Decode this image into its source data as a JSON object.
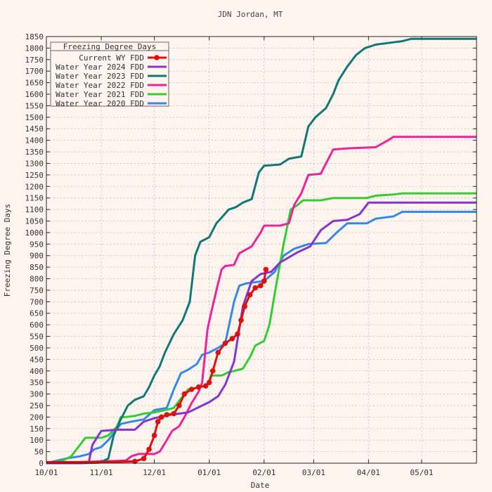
{
  "chart_data": {
    "type": "line",
    "title": "JDN Jordan, MT",
    "xlabel": "Date",
    "ylabel": "Freezing Degree Days",
    "x_unit": "date",
    "xlim": [
      "10/01",
      "06/01"
    ],
    "ylim": [
      0,
      1850
    ],
    "yticks": [
      0,
      50,
      100,
      150,
      200,
      250,
      300,
      350,
      400,
      450,
      500,
      550,
      600,
      650,
      700,
      750,
      800,
      850,
      900,
      950,
      1000,
      1050,
      1100,
      1150,
      1200,
      1250,
      1300,
      1350,
      1400,
      1450,
      1500,
      1550,
      1600,
      1650,
      1700,
      1750,
      1800,
      1850
    ],
    "xticks": [
      "10/01",
      "11/01",
      "12/01",
      "01/01",
      "02/01",
      "03/01",
      "04/01",
      "05/01"
    ],
    "grid": true,
    "legend": {
      "title": "Freezing Degree Days",
      "placement": "top-left"
    },
    "series": [
      {
        "name": "Current WY FDD",
        "color": "#dd1111",
        "markers": true,
        "points": [
          [
            "10/01",
            5
          ],
          [
            "10/20",
            5
          ],
          [
            "11/05",
            5
          ],
          [
            "11/20",
            8
          ],
          [
            "11/25",
            20
          ],
          [
            "11/28",
            60
          ],
          [
            "12/01",
            120
          ],
          [
            "12/03",
            180
          ],
          [
            "12/05",
            200
          ],
          [
            "12/08",
            210
          ],
          [
            "12/12",
            215
          ],
          [
            "12/15",
            250
          ],
          [
            "12/18",
            300
          ],
          [
            "12/22",
            320
          ],
          [
            "12/26",
            330
          ],
          [
            "12/30",
            335
          ],
          [
            "01/01",
            350
          ],
          [
            "01/03",
            400
          ],
          [
            "01/06",
            480
          ],
          [
            "01/10",
            520
          ],
          [
            "01/14",
            540
          ],
          [
            "01/17",
            560
          ],
          [
            "01/19",
            620
          ],
          [
            "01/21",
            680
          ],
          [
            "01/24",
            730
          ],
          [
            "01/27",
            760
          ],
          [
            "01/30",
            770
          ],
          [
            "02/01",
            790
          ],
          [
            "02/02",
            840
          ]
        ]
      },
      {
        "name": "Water Year 2024 FDD",
        "color": "#8833cc",
        "markers": false,
        "points": [
          [
            "10/01",
            0
          ],
          [
            "10/20",
            0
          ],
          [
            "10/25",
            5
          ],
          [
            "10/27",
            80
          ],
          [
            "11/01",
            140
          ],
          [
            "11/10",
            145
          ],
          [
            "11/20",
            145
          ],
          [
            "11/25",
            180
          ],
          [
            "12/01",
            195
          ],
          [
            "12/10",
            210
          ],
          [
            "12/20",
            220
          ],
          [
            "12/28",
            250
          ],
          [
            "01/01",
            265
          ],
          [
            "01/06",
            290
          ],
          [
            "01/10",
            340
          ],
          [
            "01/15",
            440
          ],
          [
            "01/20",
            680
          ],
          [
            "01/25",
            790
          ],
          [
            "01/30",
            820
          ],
          [
            "02/05",
            830
          ],
          [
            "02/10",
            870
          ],
          [
            "02/20",
            915
          ],
          [
            "02/27",
            940
          ],
          [
            "03/05",
            1010
          ],
          [
            "03/12",
            1050
          ],
          [
            "03/20",
            1055
          ],
          [
            "03/27",
            1080
          ],
          [
            "04/01",
            1130
          ],
          [
            "04/10",
            1130
          ],
          [
            "05/01",
            1130
          ],
          [
            "06/01",
            1130
          ]
        ]
      },
      {
        "name": "Water Year 2023 FDD",
        "color": "#117777",
        "markers": false,
        "points": [
          [
            "10/01",
            0
          ],
          [
            "10/20",
            0
          ],
          [
            "10/31",
            2
          ],
          [
            "11/05",
            20
          ],
          [
            "11/08",
            120
          ],
          [
            "11/12",
            190
          ],
          [
            "11/16",
            250
          ],
          [
            "11/20",
            275
          ],
          [
            "11/25",
            290
          ],
          [
            "11/28",
            330
          ],
          [
            "12/01",
            380
          ],
          [
            "12/04",
            420
          ],
          [
            "12/07",
            480
          ],
          [
            "12/12",
            560
          ],
          [
            "12/17",
            620
          ],
          [
            "12/21",
            700
          ],
          [
            "12/24",
            900
          ],
          [
            "12/27",
            960
          ],
          [
            "01/01",
            980
          ],
          [
            "01/05",
            1040
          ],
          [
            "01/08",
            1065
          ],
          [
            "01/12",
            1100
          ],
          [
            "01/16",
            1110
          ],
          [
            "01/20",
            1130
          ],
          [
            "01/25",
            1145
          ],
          [
            "01/29",
            1260
          ],
          [
            "02/01",
            1290
          ],
          [
            "02/10",
            1295
          ],
          [
            "02/15",
            1320
          ],
          [
            "02/22",
            1330
          ],
          [
            "02/26",
            1460
          ],
          [
            "03/02",
            1500
          ],
          [
            "03/08",
            1540
          ],
          [
            "03/12",
            1600
          ],
          [
            "03/15",
            1660
          ],
          [
            "03/20",
            1720
          ],
          [
            "03/25",
            1770
          ],
          [
            "03/30",
            1800
          ],
          [
            "04/05",
            1815
          ],
          [
            "04/15",
            1825
          ],
          [
            "04/20",
            1830
          ],
          [
            "04/25",
            1840
          ],
          [
            "05/01",
            1840
          ],
          [
            "06/01",
            1840
          ]
        ]
      },
      {
        "name": "Water Year 2022 FDD",
        "color": "#ee2299",
        "markers": false,
        "points": [
          [
            "10/01",
            0
          ],
          [
            "10/20",
            5
          ],
          [
            "11/01",
            8
          ],
          [
            "11/10",
            10
          ],
          [
            "11/15",
            12
          ],
          [
            "11/18",
            30
          ],
          [
            "11/22",
            40
          ],
          [
            "12/01",
            40
          ],
          [
            "12/04",
            50
          ],
          [
            "12/08",
            100
          ],
          [
            "12/11",
            140
          ],
          [
            "12/15",
            160
          ],
          [
            "12/18",
            200
          ],
          [
            "12/22",
            260
          ],
          [
            "12/26",
            310
          ],
          [
            "12/28",
            350
          ],
          [
            "12/31",
            580
          ],
          [
            "01/02",
            650
          ],
          [
            "01/06",
            780
          ],
          [
            "01/08",
            840
          ],
          [
            "01/10",
            855
          ],
          [
            "01/15",
            860
          ],
          [
            "01/18",
            910
          ],
          [
            "01/25",
            940
          ],
          [
            "01/30",
            1000
          ],
          [
            "02/01",
            1030
          ],
          [
            "02/10",
            1030
          ],
          [
            "02/15",
            1040
          ],
          [
            "02/18",
            1120
          ],
          [
            "02/22",
            1170
          ],
          [
            "02/26",
            1250
          ],
          [
            "03/05",
            1255
          ],
          [
            "03/08",
            1300
          ],
          [
            "03/12",
            1360
          ],
          [
            "03/20",
            1365
          ],
          [
            "04/05",
            1370
          ],
          [
            "04/12",
            1400
          ],
          [
            "04/15",
            1415
          ],
          [
            "05/01",
            1415
          ],
          [
            "06/01",
            1415
          ]
        ]
      },
      {
        "name": "Water Year 2021 FDD",
        "color": "#33cc33",
        "markers": false,
        "points": [
          [
            "10/01",
            0
          ],
          [
            "10/10",
            10
          ],
          [
            "10/15",
            30
          ],
          [
            "10/20",
            80
          ],
          [
            "10/23",
            110
          ],
          [
            "11/01",
            110
          ],
          [
            "11/05",
            120
          ],
          [
            "11/10",
            160
          ],
          [
            "11/12",
            200
          ],
          [
            "11/15",
            200
          ],
          [
            "11/20",
            205
          ],
          [
            "11/25",
            215
          ],
          [
            "12/01",
            220
          ],
          [
            "12/07",
            230
          ],
          [
            "12/12",
            240
          ],
          [
            "12/16",
            280
          ],
          [
            "12/20",
            320
          ],
          [
            "12/27",
            330
          ],
          [
            "12/31",
            340
          ],
          [
            "01/02",
            380
          ],
          [
            "01/08",
            380
          ],
          [
            "01/12",
            395
          ],
          [
            "01/15",
            400
          ],
          [
            "01/20",
            410
          ],
          [
            "01/24",
            460
          ],
          [
            "01/27",
            510
          ],
          [
            "02/01",
            530
          ],
          [
            "02/04",
            600
          ],
          [
            "02/08",
            780
          ],
          [
            "02/12",
            950
          ],
          [
            "02/16",
            1100
          ],
          [
            "02/20",
            1120
          ],
          [
            "02/23",
            1140
          ],
          [
            "03/05",
            1140
          ],
          [
            "03/12",
            1150
          ],
          [
            "03/20",
            1150
          ],
          [
            "03/31",
            1150
          ],
          [
            "04/05",
            1160
          ],
          [
            "04/15",
            1165
          ],
          [
            "04/20",
            1170
          ],
          [
            "05/01",
            1170
          ],
          [
            "06/01",
            1170
          ]
        ]
      },
      {
        "name": "Water Year 2020 FDD",
        "color": "#3388ee",
        "markers": false,
        "points": [
          [
            "10/01",
            0
          ],
          [
            "10/12",
            20
          ],
          [
            "10/20",
            30
          ],
          [
            "10/25",
            40
          ],
          [
            "10/28",
            60
          ],
          [
            "11/01",
            70
          ],
          [
            "11/05",
            100
          ],
          [
            "11/08",
            130
          ],
          [
            "11/12",
            170
          ],
          [
            "11/18",
            180
          ],
          [
            "11/25",
            190
          ],
          [
            "12/01",
            230
          ],
          [
            "12/08",
            240
          ],
          [
            "12/12",
            320
          ],
          [
            "12/16",
            390
          ],
          [
            "12/20",
            405
          ],
          [
            "12/25",
            430
          ],
          [
            "12/28",
            470
          ],
          [
            "01/01",
            480
          ],
          [
            "01/06",
            500
          ],
          [
            "01/10",
            520
          ],
          [
            "01/15",
            700
          ],
          [
            "01/18",
            770
          ],
          [
            "01/22",
            780
          ],
          [
            "02/01",
            790
          ],
          [
            "02/07",
            830
          ],
          [
            "02/12",
            900
          ],
          [
            "02/18",
            930
          ],
          [
            "02/26",
            950
          ],
          [
            "03/08",
            955
          ],
          [
            "03/14",
            1000
          ],
          [
            "03/20",
            1040
          ],
          [
            "03/31",
            1040
          ],
          [
            "04/05",
            1060
          ],
          [
            "04/15",
            1070
          ],
          [
            "04/20",
            1090
          ],
          [
            "05/01",
            1090
          ],
          [
            "06/01",
            1090
          ]
        ]
      }
    ]
  }
}
